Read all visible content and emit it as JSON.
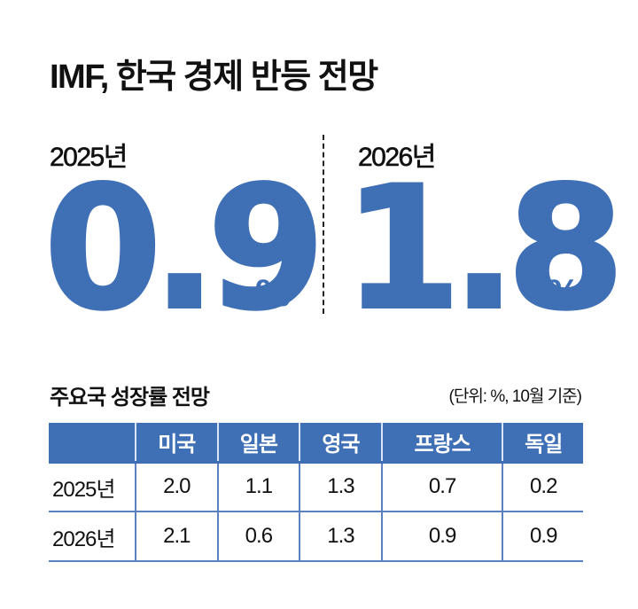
{
  "title": "IMF, 한국 경제 반등 전망",
  "highlights": [
    {
      "year_label": "2025년",
      "value": "0.9",
      "unit": "%"
    },
    {
      "year_label": "2026년",
      "value": "1.8",
      "unit": "%"
    }
  ],
  "table_section": {
    "title": "주요국 성장률 전망",
    "unit_note": "(단위: %, 10월 기준)",
    "columns": [
      "",
      "미국",
      "일본",
      "영국",
      "프랑스",
      "독일"
    ],
    "rows": [
      {
        "label": "2025년",
        "values": [
          "2.0",
          "1.1",
          "1.3",
          "0.7",
          "0.2"
        ]
      },
      {
        "label": "2026년",
        "values": [
          "2.1",
          "0.6",
          "1.3",
          "0.9",
          "0.9"
        ]
      }
    ]
  },
  "colors": {
    "accent_blue": "#3F6FB5",
    "text": "#111111",
    "background": "#ffffff"
  }
}
